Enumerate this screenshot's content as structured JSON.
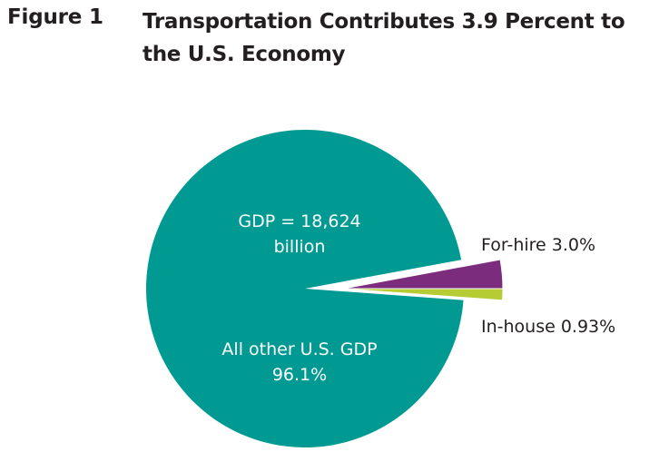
{
  "figure": {
    "label": "Figure 1",
    "title": "Transportation Contributes 3.9 Percent to the U.S. Economy"
  },
  "chart_data": {
    "type": "pie",
    "title": "Transportation Contributes 3.9 Percent to the U.S. Economy",
    "center_note": [
      "GDP = 18,624",
      "billion"
    ],
    "slices": [
      {
        "name": "All other U.S. GDP",
        "value": 96.1,
        "label_lines": [
          "All other U.S. GDP",
          "96.1%"
        ],
        "color": "#009a93"
      },
      {
        "name": "For-hire",
        "value": 3.0,
        "label_lines": [
          "For-hire 3.0%"
        ],
        "color": "#7b2c7d"
      },
      {
        "name": "In-house",
        "value": 0.93,
        "label_lines": [
          "In-house 0.93%"
        ],
        "color": "#b5cc34"
      }
    ]
  }
}
